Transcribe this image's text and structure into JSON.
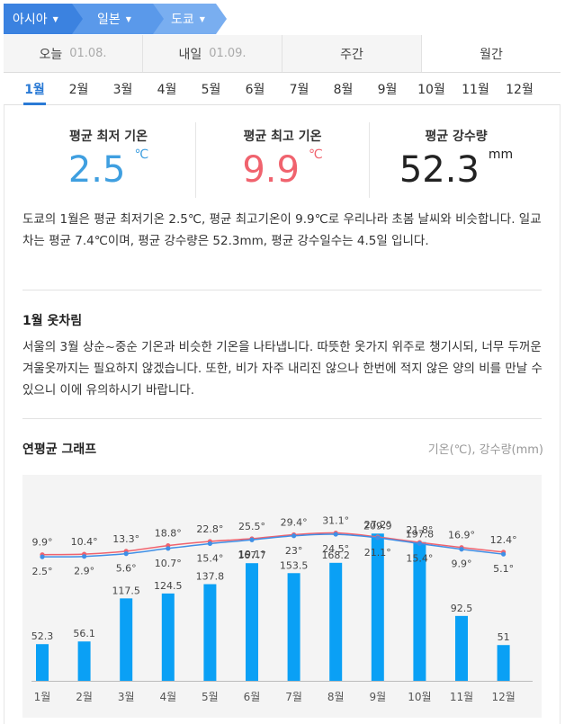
{
  "breadcrumb": {
    "region": "아시아",
    "country": "일본",
    "city": "도쿄"
  },
  "period_tabs": [
    {
      "label": "오늘",
      "date": "01.08."
    },
    {
      "label": "내일",
      "date": "01.09."
    },
    {
      "label": "주간",
      "date": ""
    },
    {
      "label": "월간",
      "date": ""
    }
  ],
  "months": [
    "1월",
    "2월",
    "3월",
    "4월",
    "5월",
    "6월",
    "7월",
    "8월",
    "9월",
    "10월",
    "11월",
    "12월"
  ],
  "selected_month": "1월",
  "stats": {
    "min_temp": {
      "title": "평균 최저 기온",
      "value": "2.5",
      "unit": "℃"
    },
    "max_temp": {
      "title": "평균 최고 기온",
      "value": "9.9",
      "unit": "℃"
    },
    "precip": {
      "title": "평균 강수량",
      "value": "52.3",
      "unit": "mm"
    }
  },
  "summary": "도쿄의 1월은 평균 최저기온 2.5℃, 평균 최고기온이 9.9℃로 우리나라 초봄 날씨와 비슷합니다. 일교차는 평균 7.4℃이며, 평균 강수량은 52.3mm, 평균 강수일수는 4.5일 입니다.",
  "clothing": {
    "title": "1월 옷차림",
    "text": "서울의 3월 상순~중순 기온과 비슷한 기온을 나타냅니다. 따뜻한 옷가지 위주로 챙기시되, 너무 두꺼운 겨울옷까지는 필요하지 않겠습니다. 또한, 비가 자주 내리진 않으나 한번에 적지 않은 양의 비를 만날 수 있으니 이에 유의하시기 바랍니다."
  },
  "graph": {
    "title": "연평균 그래프",
    "unit_label": "기온(℃), 강수량(mm)"
  },
  "colors": {
    "accent": "#2a7ad5",
    "max_line": "#f0636e",
    "min_line": "#3f8fe6",
    "bar": "#0aa0f5"
  },
  "chart_data": {
    "type": "bar+line",
    "categories": [
      "1월",
      "2월",
      "3월",
      "4월",
      "5월",
      "6월",
      "7월",
      "8월",
      "9월",
      "10월",
      "11월",
      "12월"
    ],
    "series": [
      {
        "type": "line",
        "values": [
          9.9,
          10.4,
          13.3,
          18.8,
          22.8,
          25.5,
          29.4,
          31.1,
          27.2,
          21.8,
          16.9,
          12.4
        ]
      },
      {
        "type": "line",
        "values": [
          2.5,
          2.9,
          5.6,
          10.7,
          15.4,
          19.1,
          23,
          24.5,
          21.1,
          15.4,
          9.9,
          5.1
        ]
      },
      {
        "type": "bar",
        "values": [
          52.3,
          56.1,
          117.5,
          124.5,
          137.8,
          167.7,
          153.5,
          168.2,
          209.9,
          197.8,
          92.5,
          51
        ]
      }
    ],
    "temp_labels_max": [
      "9.9°",
      "10.4°",
      "13.3°",
      "18.8°",
      "22.8°",
      "25.5°",
      "29.4°",
      "31.1°",
      "27.2°",
      "21.8°",
      "16.9°",
      "12.4°"
    ],
    "temp_labels_min": [
      "2.5°",
      "2.9°",
      "5.6°",
      "10.7°",
      "15.4°",
      "19.1°",
      "23°",
      "24.5°",
      "21.1°",
      "15.4°",
      "9.9°",
      "5.1°"
    ],
    "precip_labels": [
      "52.3",
      "56.1",
      "117.5",
      "124.5",
      "137.8",
      "167.7",
      "153.5",
      "168.2",
      "209.9",
      "197.8",
      "92.5",
      "51"
    ]
  }
}
